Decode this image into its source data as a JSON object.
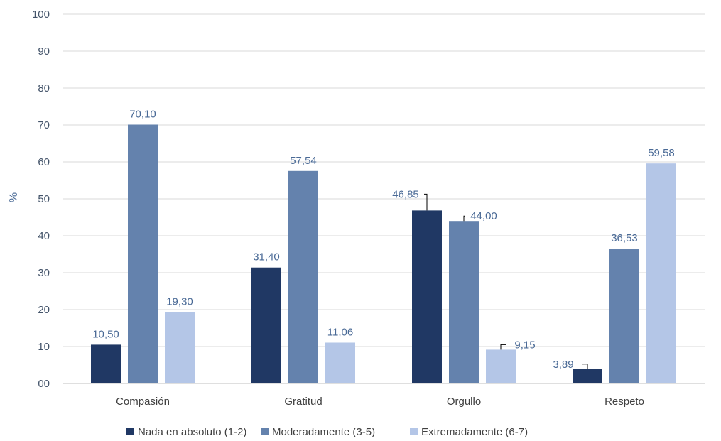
{
  "chart_data": {
    "type": "bar",
    "title": "",
    "xlabel": "",
    "ylabel": "%",
    "ylim": [
      0,
      100
    ],
    "yticks": [
      "00",
      "10",
      "20",
      "30",
      "40",
      "50",
      "60",
      "70",
      "80",
      "90",
      "100"
    ],
    "grid": true,
    "legend_position": "bottom",
    "categories": [
      "Compasión",
      "Gratitud",
      "Orgullo",
      "Respeto"
    ],
    "series": [
      {
        "name": "Nada en absoluto (1-2)",
        "color": "#203864",
        "values": [
          10.5,
          31.4,
          46.85,
          3.89
        ],
        "labels": [
          "10,50",
          "31,40",
          "46,85",
          "3,89"
        ]
      },
      {
        "name": "Moderadamente (3-5)",
        "color": "#6482AD",
        "values": [
          70.1,
          57.54,
          44.0,
          36.53
        ],
        "labels": [
          "70,10",
          "57,54",
          "44,00",
          "36,53"
        ]
      },
      {
        "name": "Extremadamente (6-7)",
        "color": "#B4C6E7",
        "values": [
          19.3,
          11.06,
          9.15,
          59.58
        ],
        "labels": [
          "19,30",
          "11,06",
          "9,15",
          "59,58"
        ]
      }
    ]
  }
}
